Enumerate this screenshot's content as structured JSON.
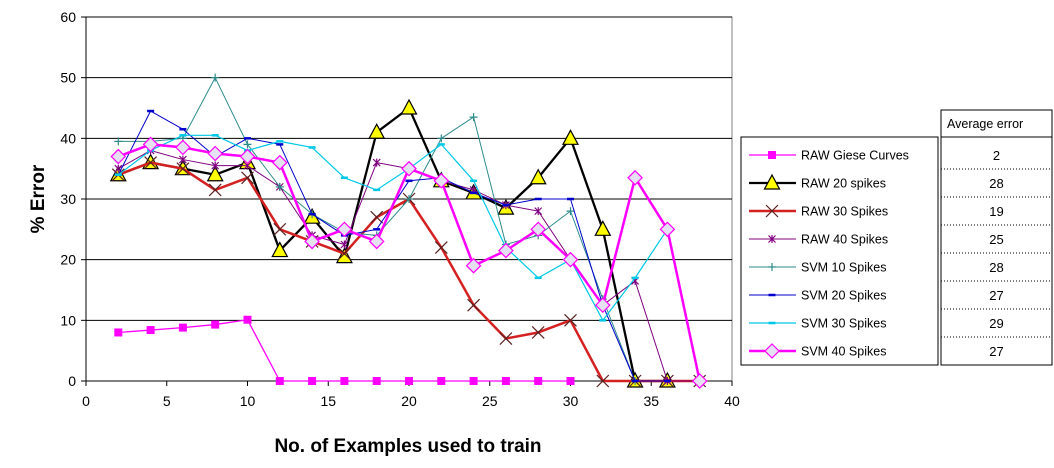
{
  "chart_data": {
    "type": "line",
    "title": "",
    "xlabel": "No. of Examples used to train",
    "ylabel": "% Error",
    "xlim": [
      0,
      40
    ],
    "ylim": [
      0,
      60
    ],
    "xticks": [
      0,
      5,
      10,
      15,
      20,
      25,
      30,
      35,
      40
    ],
    "yticks": [
      0,
      10,
      20,
      30,
      40,
      50,
      60
    ],
    "grid": "horizontal",
    "legend_position": "right",
    "average_error_header": "Average error",
    "series": [
      {
        "name": "RAW Giese Curves",
        "color": "#ff00ff",
        "marker": "square",
        "average_error": "2",
        "x": [
          2,
          4,
          6,
          8,
          10,
          12,
          14,
          16,
          18,
          20,
          22,
          24,
          26,
          28,
          30
        ],
        "y": [
          8,
          8.4,
          8.8,
          9.3,
          10.1,
          0,
          0,
          0,
          0,
          0,
          0,
          0,
          0,
          0,
          0
        ]
      },
      {
        "name": "RAW 20 spikes",
        "color": "#000000",
        "marker": "triangle",
        "average_error": "28",
        "x": [
          2,
          4,
          6,
          8,
          10,
          12,
          14,
          16,
          18,
          20,
          22,
          24,
          26,
          28,
          30,
          32,
          34,
          36
        ],
        "y": [
          34,
          36,
          35,
          34,
          36,
          21.5,
          27,
          20.5,
          41,
          45,
          33,
          31,
          28.5,
          33.5,
          40,
          25,
          0,
          0
        ]
      },
      {
        "name": "RAW 30 Spikes",
        "color": "#d42020",
        "marker": "x",
        "average_error": "19",
        "x": [
          2,
          4,
          6,
          8,
          10,
          12,
          14,
          16,
          18,
          20,
          22,
          24,
          26,
          28,
          30,
          32,
          34,
          36,
          38
        ],
        "y": [
          34,
          36,
          35,
          31.5,
          33.5,
          25,
          23,
          21,
          27,
          30,
          22,
          12.5,
          7,
          8,
          10,
          0,
          0,
          0,
          0
        ]
      },
      {
        "name": "RAW 40 Spikes",
        "color": "#800080",
        "marker": "star",
        "average_error": "25",
        "x": [
          2,
          4,
          6,
          8,
          10,
          12,
          14,
          16,
          18,
          20,
          22,
          24,
          26,
          28,
          30,
          32,
          34,
          36,
          38
        ],
        "y": [
          35,
          38,
          36.5,
          35.5,
          35.5,
          32,
          24,
          22.5,
          36,
          35,
          33,
          31.5,
          29,
          28,
          20,
          12.5,
          16.5,
          0,
          0
        ]
      },
      {
        "name": "SVM 10 Spikes",
        "color": "#2e8b8b",
        "marker": "plus",
        "average_error": "28",
        "x": [
          2,
          4,
          6,
          8,
          10,
          12,
          14,
          16,
          18,
          20,
          22,
          24,
          26,
          28,
          30,
          32,
          34
        ],
        "y": [
          39.5,
          39.5,
          40,
          50,
          39,
          32,
          27.5,
          24.5,
          24,
          30,
          40,
          43.5,
          22.5,
          24,
          28,
          13.5,
          0
        ]
      },
      {
        "name": "SVM 20 Spikes",
        "color": "#0000cc",
        "marker": "dash",
        "average_error": "27",
        "x": [
          2,
          4,
          6,
          8,
          10,
          12,
          14,
          16,
          18,
          20,
          22,
          24,
          26,
          28,
          30,
          32,
          34,
          36
        ],
        "y": [
          34,
          44.5,
          41.5,
          37,
          40,
          39,
          27.5,
          24,
          25,
          33,
          33.5,
          31,
          29,
          30,
          30,
          12.5,
          0,
          0
        ]
      },
      {
        "name": "SVM 30 Spikes",
        "color": "#00c8e8",
        "marker": "dash",
        "average_error": "29",
        "x": [
          2,
          4,
          6,
          8,
          10,
          12,
          14,
          16,
          18,
          20,
          22,
          24,
          26,
          28,
          30,
          32,
          34,
          36
        ],
        "y": [
          34,
          38,
          40.5,
          40.5,
          38,
          39.5,
          38.5,
          33.5,
          31.5,
          35,
          39,
          33,
          22,
          17,
          20,
          10,
          17,
          25
        ]
      },
      {
        "name": "SVM 40 Spikes",
        "color": "#ff00ff",
        "marker": "diamond",
        "average_error": "27",
        "x": [
          2,
          4,
          6,
          8,
          10,
          12,
          14,
          16,
          18,
          20,
          22,
          24,
          26,
          28,
          30,
          32,
          34,
          36,
          38
        ],
        "y": [
          37,
          39,
          38.5,
          37.5,
          37,
          36,
          23,
          25,
          23,
          35,
          33,
          19,
          21.5,
          25,
          20,
          12.5,
          33.5,
          25,
          0
        ]
      }
    ]
  }
}
